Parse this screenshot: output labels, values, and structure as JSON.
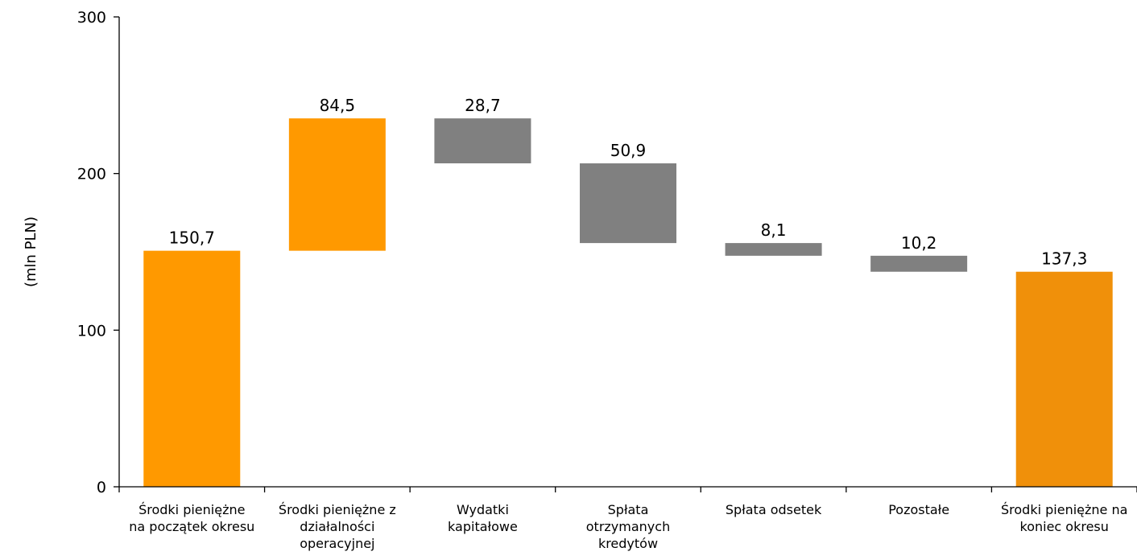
{
  "chart_data": {
    "type": "bar",
    "subtype": "waterfall",
    "ylabel": "(mln PLN)",
    "xlabel": "",
    "ylim": [
      0,
      300
    ],
    "yticks": [
      "0",
      "100",
      "200",
      "300"
    ],
    "grid": false,
    "legend": "none",
    "categories": [
      [
        "Środki pieniężne",
        "na początek okresu"
      ],
      [
        "Środki pieniężne z",
        "działalności",
        "operacyjnej"
      ],
      [
        "Wydatki",
        "kapitałowe"
      ],
      [
        "Spłata",
        "otrzymanych",
        "kredytów"
      ],
      [
        "Spłata odsetek"
      ],
      [
        "Pozostałe"
      ],
      [
        "Środki pieniężne na",
        "koniec okresu"
      ]
    ],
    "bars": [
      {
        "kind": "total",
        "value": 150.7,
        "label": "150,7",
        "base": 0,
        "top": 150.7,
        "color": "#FF9900"
      },
      {
        "kind": "increase",
        "value": 84.5,
        "label": "84,5",
        "base": 150.7,
        "top": 235.2,
        "color": "#FF9900"
      },
      {
        "kind": "decrease",
        "value": 28.7,
        "label": "28,7",
        "base": 206.5,
        "top": 235.2,
        "color": "#808080"
      },
      {
        "kind": "decrease",
        "value": 50.9,
        "label": "50,9",
        "base": 155.6,
        "top": 206.5,
        "color": "#808080"
      },
      {
        "kind": "decrease",
        "value": 8.1,
        "label": "8,1",
        "base": 147.5,
        "top": 155.6,
        "color": "#808080"
      },
      {
        "kind": "decrease",
        "value": 10.2,
        "label": "10,2",
        "base": 137.3,
        "top": 147.5,
        "color": "#808080"
      },
      {
        "kind": "total",
        "value": 137.3,
        "label": "137,3",
        "base": 0,
        "top": 137.3,
        "color": "#F0900A"
      }
    ]
  }
}
